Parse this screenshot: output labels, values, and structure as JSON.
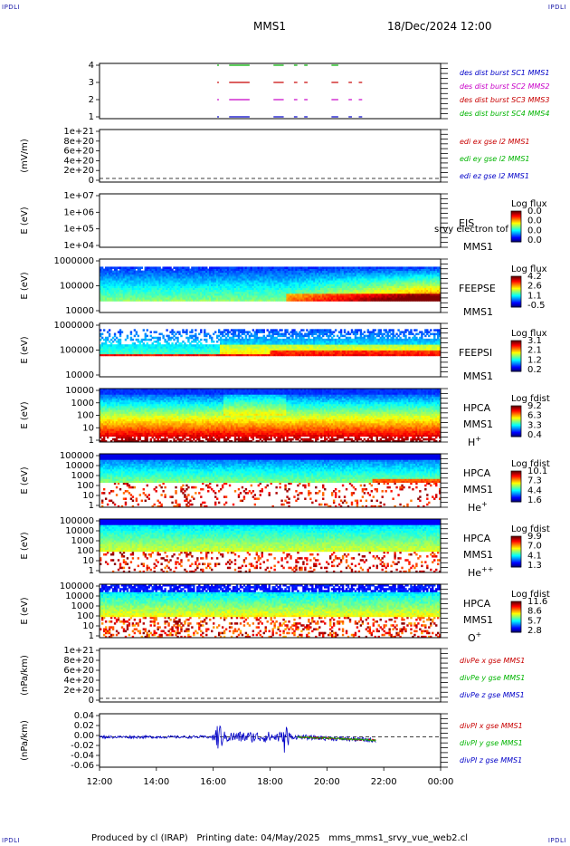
{
  "corner_label": "IPDLI",
  "header": {
    "spacecraft": "MMS1",
    "datetime": "18/Dec/2024 12:00"
  },
  "footer": {
    "text": "Produced by cl (IRAP)   Printing date: 04/May/2025   mms_mms1_srvy_vue_web2.cl"
  },
  "x_axis": {
    "ticks": [
      "12:00",
      "14:00",
      "16:00",
      "18:00",
      "20:00",
      "22:00",
      "00:00"
    ]
  },
  "chart_data": [
    {
      "type": "line",
      "panel": "burst-availability",
      "ylabel": "",
      "yticks": [
        "1",
        "2",
        "3",
        "4"
      ],
      "series": [
        {
          "name": "des dist burst SC1 MMS1",
          "color": "#0000c8",
          "y": 1
        },
        {
          "name": "des dist burst SC2 MMS2",
          "color": "#c800c8",
          "y": 2
        },
        {
          "name": "des dist burst SC3 MMS3",
          "color": "#c80000",
          "y": 3
        },
        {
          "name": "des dist burst SC4 MMS4",
          "color": "#00b400",
          "y": 4
        }
      ]
    },
    {
      "type": "line",
      "panel": "edi-e-field",
      "ylabel": "(mV/m)",
      "yticks": [
        "0",
        "2e+20",
        "4e+20",
        "6e+20",
        "8e+20",
        "1e+21"
      ],
      "series": [
        {
          "name": "edi ex gse l2 MMS1",
          "color": "#c80000",
          "values": []
        },
        {
          "name": "edi ey gse l2 MMS1",
          "color": "#00b400",
          "values": []
        },
        {
          "name": "edi ez gse l2 MMS1",
          "color": "#0000c8",
          "values": []
        }
      ]
    },
    {
      "type": "heatmap",
      "panel": "eis",
      "ylabel": "E (eV)",
      "yticks": [
        "1e+04",
        "1e+05",
        "1e+06",
        "1e+07"
      ],
      "labels": [
        "EIS",
        "MMS1"
      ],
      "overlay_text": "srvy electron tof",
      "colorbar": {
        "title": "Log flux",
        "ticks": [
          "0.0",
          "0.0",
          "0.0",
          "0.0"
        ]
      }
    },
    {
      "type": "heatmap",
      "panel": "feeps-e",
      "ylabel": "E (eV)",
      "yticks": [
        "10000",
        "100000",
        "1000000"
      ],
      "labels": [
        "FEEPSE",
        "MMS1"
      ],
      "colorbar": {
        "title": "Log flux",
        "ticks": [
          "4.2",
          "2.6",
          "1.1",
          "-0.5"
        ]
      }
    },
    {
      "type": "heatmap",
      "panel": "feeps-i",
      "ylabel": "E (eV)",
      "yticks": [
        "10000",
        "100000",
        "1000000"
      ],
      "labels": [
        "FEEPSI",
        "MMS1"
      ],
      "colorbar": {
        "title": "Log flux",
        "ticks": [
          "3.1",
          "2.1",
          "1.2",
          "0.2"
        ]
      }
    },
    {
      "type": "heatmap",
      "panel": "hpca-h",
      "ylabel": "E (eV)",
      "yticks": [
        "1",
        "10",
        "100",
        "1000",
        "10000"
      ],
      "labels": [
        "HPCA",
        "MMS1"
      ],
      "species": "H",
      "charge": "+",
      "colorbar": {
        "title": "Log fdist",
        "ticks": [
          "9.2",
          "6.3",
          "3.3",
          "0.4"
        ]
      }
    },
    {
      "type": "heatmap",
      "panel": "hpca-he",
      "ylabel": "E (eV)",
      "yticks": [
        "1",
        "10",
        "100",
        "1000",
        "10000",
        "100000"
      ],
      "labels": [
        "HPCA",
        "MMS1"
      ],
      "species": "He",
      "charge": "+",
      "colorbar": {
        "title": "Log fdist",
        "ticks": [
          "10.1",
          "7.3",
          "4.4",
          "1.6"
        ]
      }
    },
    {
      "type": "heatmap",
      "panel": "hpca-hepp",
      "ylabel": "E (eV)",
      "yticks": [
        "1",
        "10",
        "100",
        "1000",
        "10000",
        "100000"
      ],
      "labels": [
        "HPCA",
        "MMS1"
      ],
      "species": "He",
      "charge": "++",
      "colorbar": {
        "title": "Log fdist",
        "ticks": [
          "9.9",
          "7.0",
          "4.1",
          "1.3"
        ]
      }
    },
    {
      "type": "heatmap",
      "panel": "hpca-o",
      "ylabel": "E (eV)",
      "yticks": [
        "1",
        "10",
        "100",
        "1000",
        "10000",
        "100000"
      ],
      "labels": [
        "HPCA",
        "MMS1"
      ],
      "species": "O",
      "charge": "+",
      "colorbar": {
        "title": "Log fdist",
        "ticks": [
          "11.6",
          "8.6",
          "5.7",
          "2.8"
        ]
      }
    },
    {
      "type": "line",
      "panel": "divpe",
      "ylabel": "(nPa/km)",
      "yticks": [
        "0",
        "2e+20",
        "4e+20",
        "6e+20",
        "8e+20",
        "1e+21"
      ],
      "series": [
        {
          "name": "divPe x gse MMS1",
          "color": "#c80000",
          "values": []
        },
        {
          "name": "divPe y gse MMS1",
          "color": "#00b400",
          "values": []
        },
        {
          "name": "divPe z gse MMS1",
          "color": "#0000c8",
          "values": []
        }
      ]
    },
    {
      "type": "line",
      "panel": "divpi",
      "ylabel": "(nPa/km)",
      "yticks": [
        "-0.06",
        "-0.04",
        "-0.02",
        "0.00",
        "0.02",
        "0.04"
      ],
      "ylim": [
        -0.065,
        0.05
      ],
      "series": [
        {
          "name": "divPI x gse MMS1",
          "color": "#c80000"
        },
        {
          "name": "divPI y gse MMS1",
          "color": "#00b400"
        },
        {
          "name": "divPI z gse MMS1",
          "color": "#0000c8"
        }
      ]
    }
  ]
}
